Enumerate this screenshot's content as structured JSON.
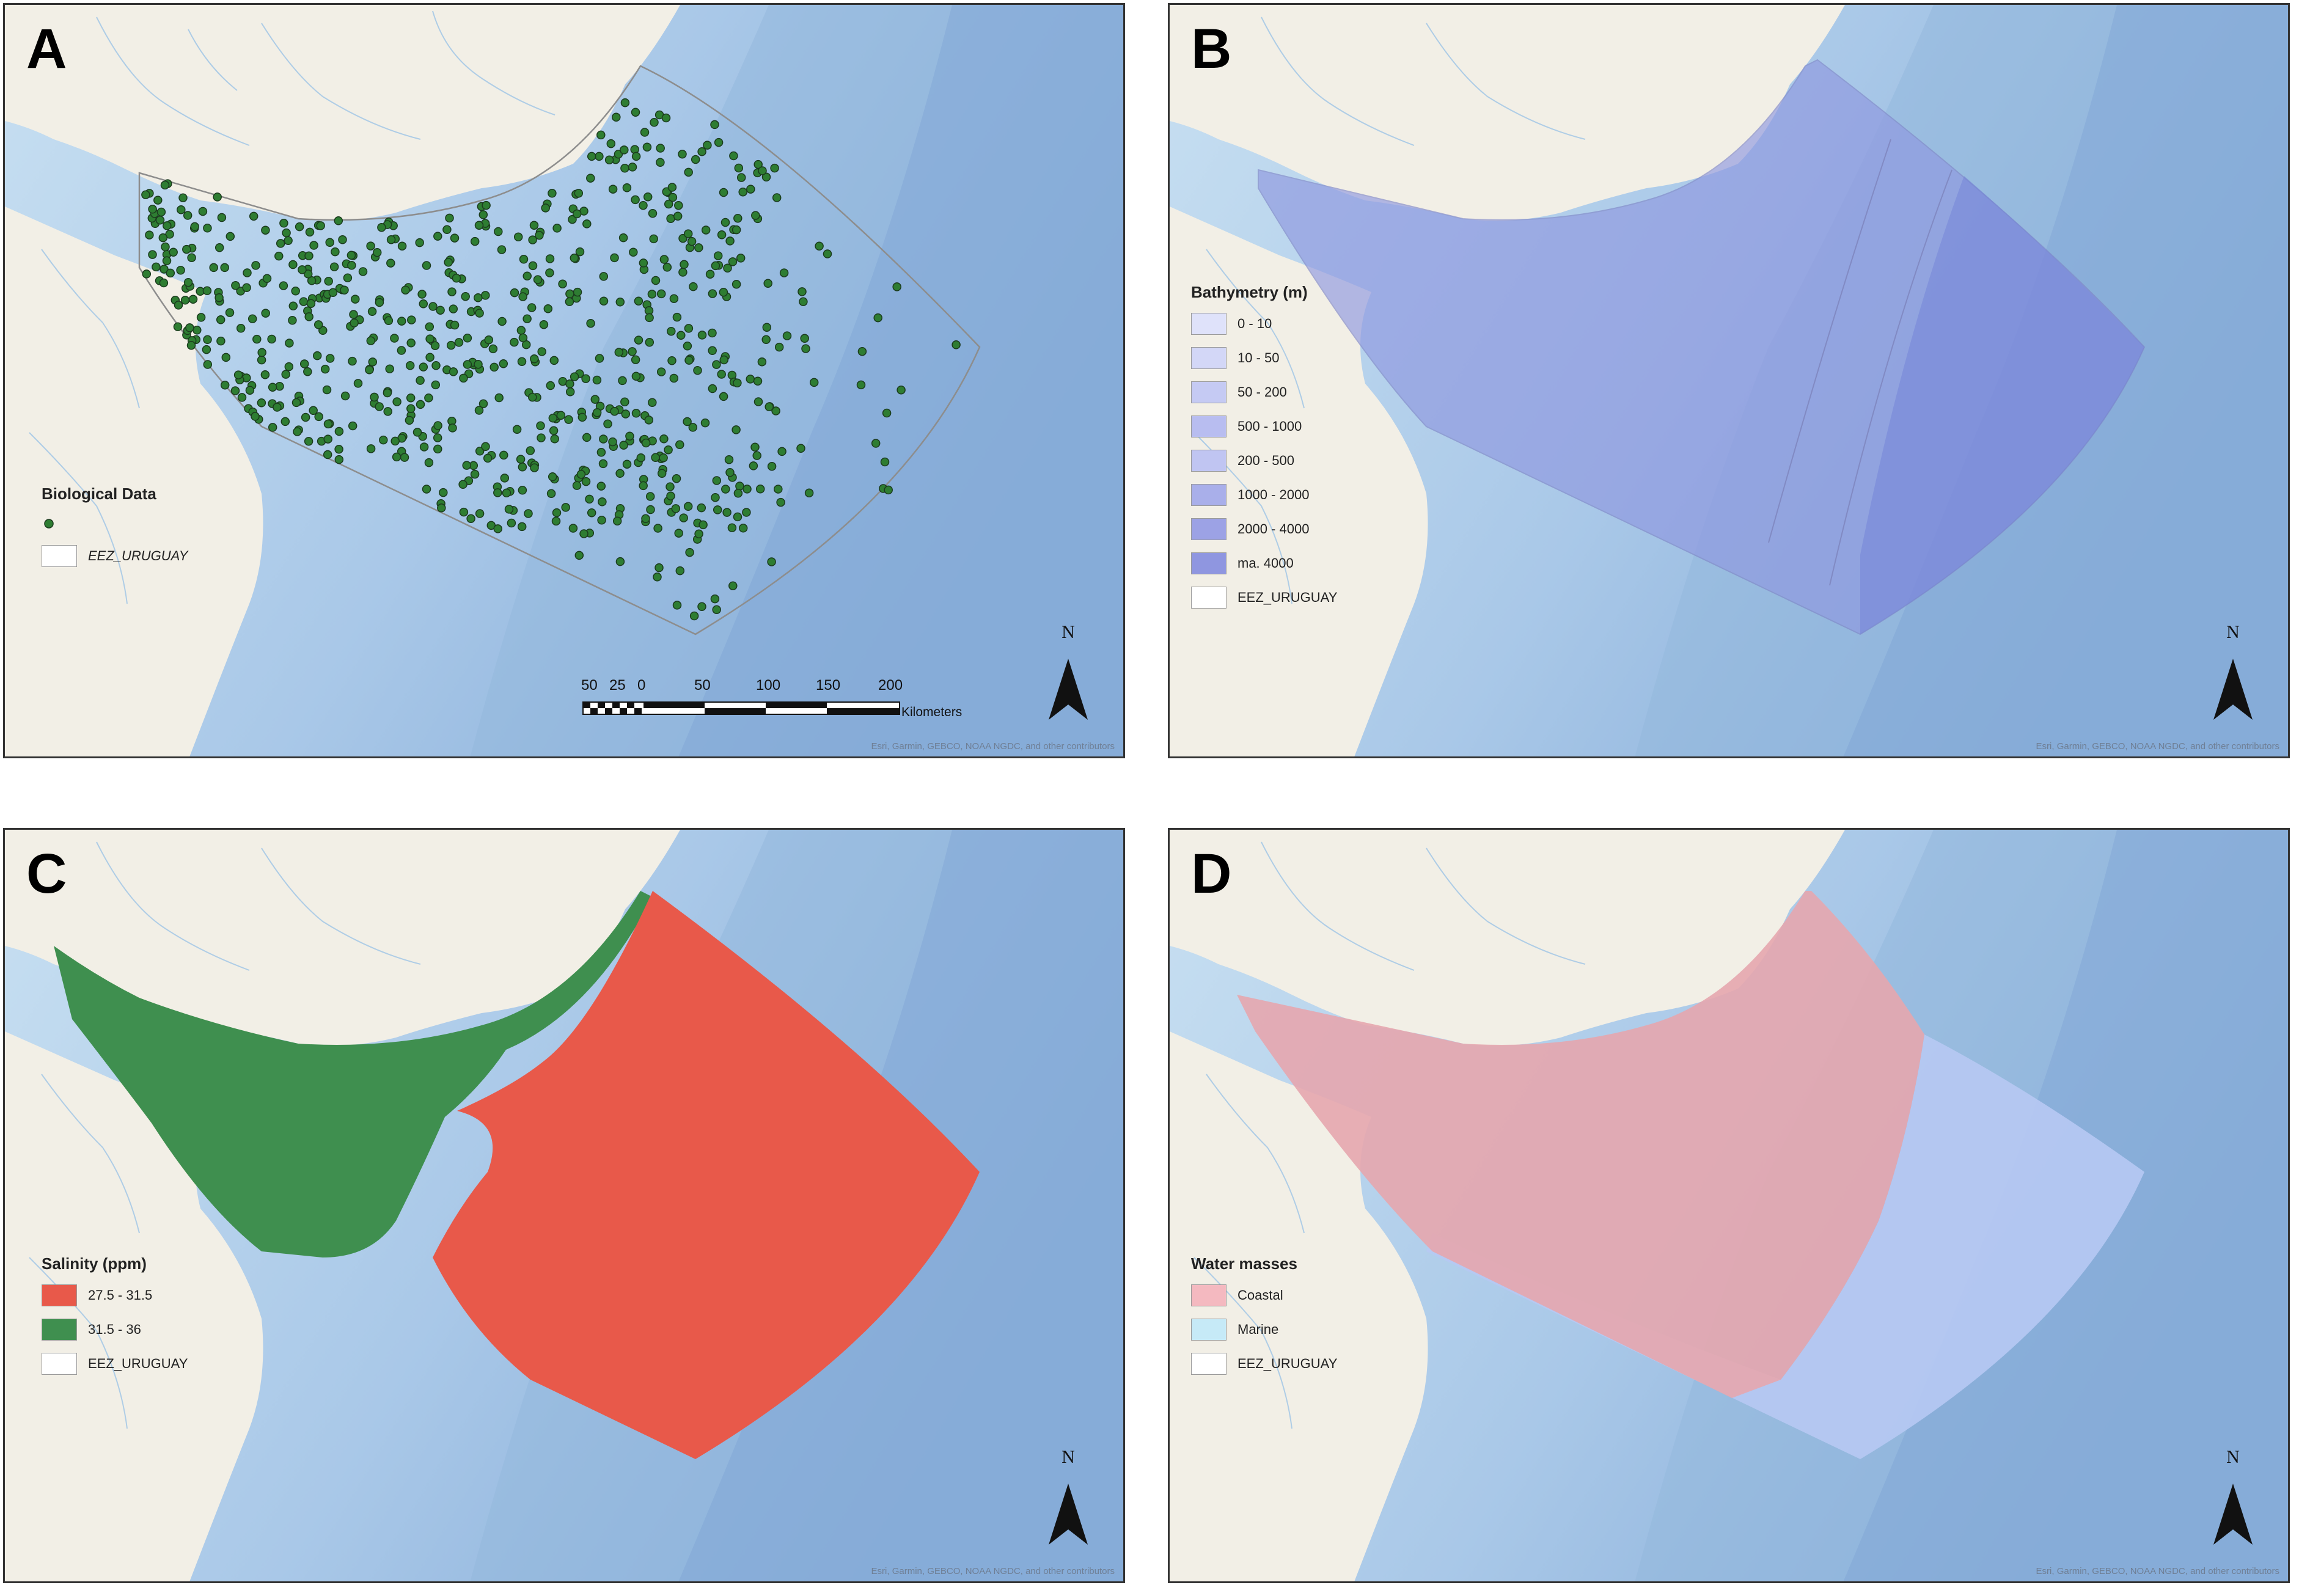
{
  "panels": {
    "A": {
      "label": "A",
      "legend_title": "Biological Data",
      "legend_items": [
        {
          "label": ""
        },
        {
          "label": "EEZ_URUGUAY"
        }
      ],
      "scale_ticks": [
        "50",
        "25",
        "0",
        "50",
        "100",
        "150",
        "200"
      ],
      "scale_unit": "Kilometers",
      "north": "N",
      "attribution": "Esri, Garmin, GEBCO, NOAA NGDC, and other contributors"
    },
    "B": {
      "label": "B",
      "legend_title": "Bathymetry (m)",
      "legend_items": [
        {
          "label": "0 - 10"
        },
        {
          "label": "10 - 50"
        },
        {
          "label": "50 - 200"
        },
        {
          "label": "500 - 1000"
        },
        {
          "label": "200 - 500"
        },
        {
          "label": "1000 - 2000"
        },
        {
          "label": "2000 - 4000"
        },
        {
          "label": "ma. 4000"
        },
        {
          "label": "EEZ_URUGUAY"
        }
      ],
      "north": "N",
      "attribution": "Esri, Garmin, GEBCO, NOAA NGDC, and other contributors"
    },
    "C": {
      "label": "C",
      "legend_title": "Salinity (ppm)",
      "legend_items": [
        {
          "label": "27.5 - 31.5"
        },
        {
          "label": "31.5 - 36"
        },
        {
          "label": "EEZ_URUGUAY"
        }
      ],
      "north": "N",
      "attribution": "Esri, Garmin, GEBCO, NOAA NGDC, and other contributors"
    },
    "D": {
      "label": "D",
      "legend_title": "Water masses",
      "legend_items": [
        {
          "label": "Coastal"
        },
        {
          "label": "Marine"
        },
        {
          "label": "EEZ_URUGUAY"
        }
      ],
      "north": "N",
      "attribution": "Esri, Garmin, GEBCO, NOAA NGDC, and other contributors"
    }
  },
  "colors": {
    "land": "#f2efe6",
    "ocean_shallow": "#bcd8ee",
    "ocean_deep": "#8eb4dc",
    "biological_points": "#2e7d32",
    "bathymetry_fill": "#8f98e0",
    "salinity_low": "#e8594a",
    "salinity_high": "#3f8f4f",
    "coastal": "#e6a6ae",
    "marine": "#b7c9f3",
    "eez_outline": "#9a9a9a"
  }
}
